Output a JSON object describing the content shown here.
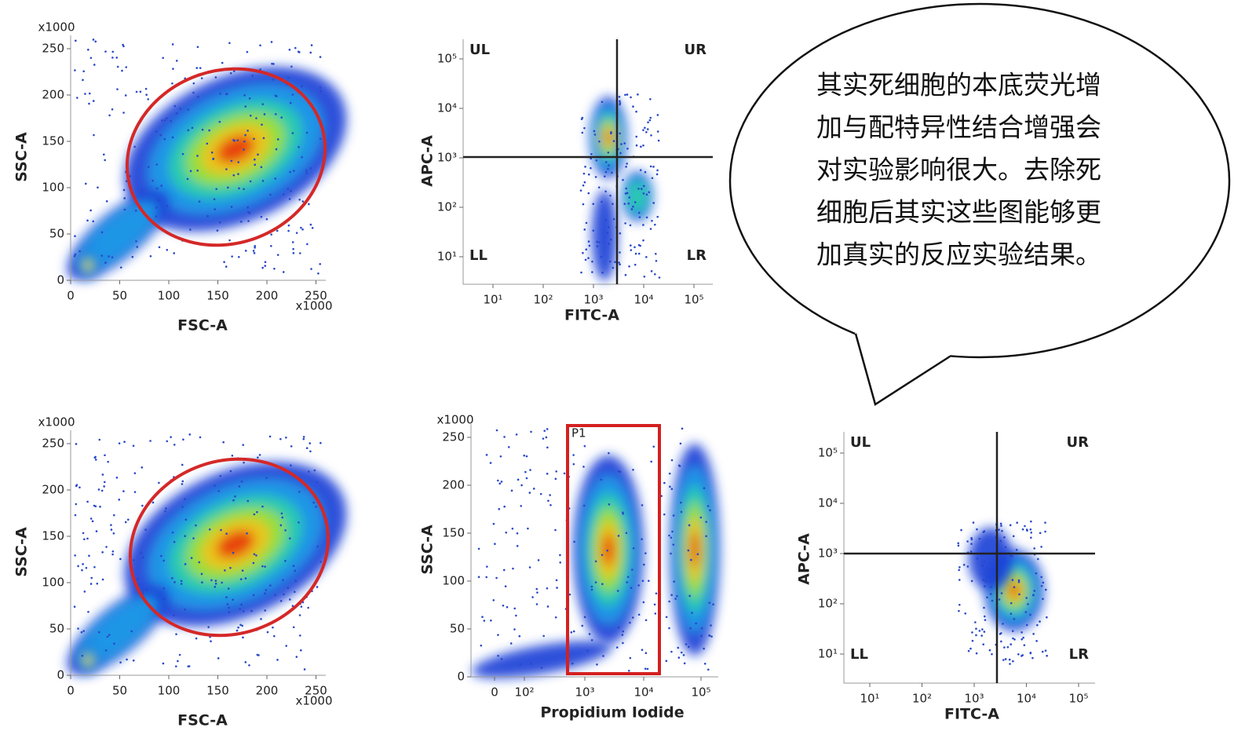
{
  "panels": [
    {
      "y_unit": "x1000",
      "x_unit": "x1000",
      "x_label": "FSC-A",
      "y_label": "SSC-A",
      "x_ticks": [
        0,
        50,
        100,
        150,
        200,
        250
      ],
      "y_ticks": [
        0,
        50,
        100,
        150,
        200,
        250
      ]
    },
    {
      "x_label": "FITC-A",
      "y_label": "APC-A",
      "x_ticks": [
        "10¹",
        "10²",
        "10³",
        "10⁴",
        "10⁵"
      ],
      "y_ticks": [
        "10¹",
        "10²",
        "10³",
        "10⁴",
        "10⁵"
      ],
      "quadrants": [
        "UL",
        "UR",
        "LL",
        "LR"
      ]
    },
    {
      "y_unit": "x1000",
      "x_unit": "x1000",
      "x_label": "FSC-A",
      "y_label": "SSC-A",
      "x_ticks": [
        0,
        50,
        100,
        150,
        200,
        250
      ],
      "y_ticks": [
        0,
        50,
        100,
        150,
        200,
        250
      ]
    },
    {
      "y_unit": "x1000",
      "x_label": "Propidium Iodide",
      "y_label": "SSC-A",
      "x_ticks": [
        "0",
        "10²",
        "10³",
        "10⁴",
        "10⁵"
      ],
      "y_ticks": [
        0,
        50,
        100,
        150,
        200,
        250
      ],
      "gate": "P1"
    },
    {
      "x_label": "FITC-A",
      "y_label": "APC-A",
      "x_ticks": [
        "10¹",
        "10²",
        "10³",
        "10⁴",
        "10⁵"
      ],
      "y_ticks": [
        "10¹",
        "10²",
        "10³",
        "10⁴",
        "10⁵"
      ],
      "quadrants": [
        "UL",
        "UR",
        "LL",
        "LR"
      ]
    }
  ],
  "callout": {
    "lines": [
      "其实死细胞的本底荧光增",
      "加与配特异性结合增强会",
      "对实验影响很大。去除死",
      "细胞后其实这些图能够更",
      "加真实的反应实验结果。"
    ]
  }
}
